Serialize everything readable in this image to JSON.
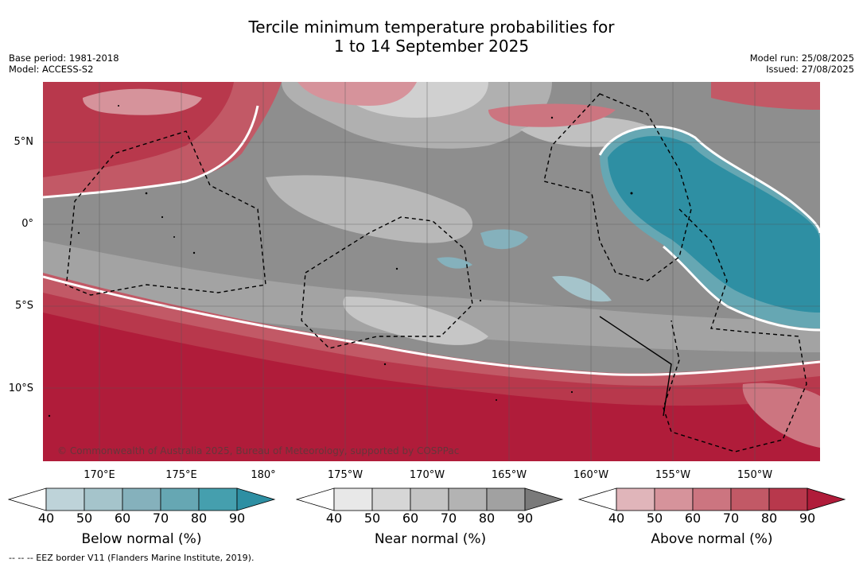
{
  "title_line1": "Tercile minimum temperature probabilities for",
  "title_line2": "1 to 14 September 2025",
  "meta_left": {
    "base_period": "Base period: 1981-2018",
    "model": "Model: ACCESS-S2"
  },
  "meta_right": {
    "model_run": "Model run: 25/08/2025",
    "issued": "Issued: 27/08/2025"
  },
  "lat_labels": [
    "5°N",
    "0°",
    "5°S",
    "10°S"
  ],
  "lon_labels": [
    "170°E",
    "175°E",
    "180°",
    "175°W",
    "170°W",
    "165°W",
    "160°W",
    "155°W",
    "150°W"
  ],
  "copyright": "© Commonwealth of Australia 2025, Bureau of Meteorology, supported by COSPPac",
  "footer": "--  --  -- EEZ border V11 (Flanders Marine Institute, 2019).",
  "colorbars": [
    {
      "title": "Below normal (%)",
      "ticks": [
        "40",
        "50",
        "60",
        "70",
        "80",
        "90"
      ],
      "colors": [
        "#bed3d9",
        "#a5c4cb",
        "#85b1bc",
        "#66a7b3",
        "#459fae"
      ],
      "extend_color": "#2e8fa3"
    },
    {
      "title": "Near normal (%)",
      "ticks": [
        "40",
        "50",
        "60",
        "70",
        "80",
        "90"
      ],
      "colors": [
        "#e8e8e8",
        "#d6d6d6",
        "#c4c4c4",
        "#b3b3b3",
        "#a1a1a1"
      ],
      "extend_color": "#7a7a7a"
    },
    {
      "title": "Above normal (%)",
      "ticks": [
        "40",
        "50",
        "60",
        "70",
        "80",
        "90"
      ],
      "colors": [
        "#e0b5ba",
        "#d6939b",
        "#cc7580",
        "#c25966",
        "#b8384c"
      ],
      "extend_color": "#b01c3a"
    }
  ],
  "colors": {
    "below": "#2e8fa3",
    "near": "#888888",
    "above": "#b01c3a"
  }
}
